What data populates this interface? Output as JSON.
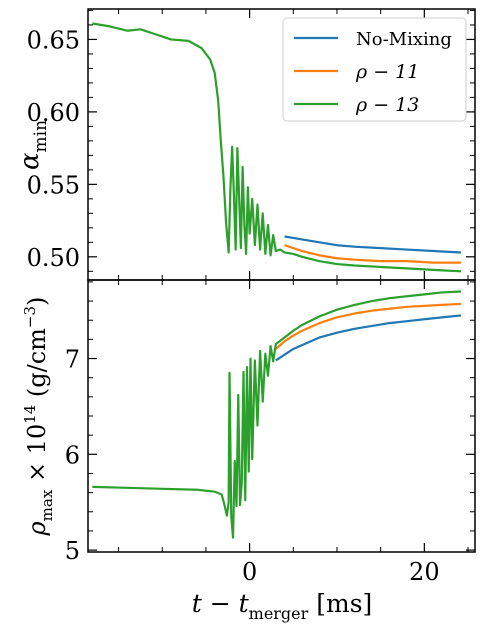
{
  "chart_data": [
    {
      "type": "line",
      "ylabel": "α_min",
      "xlim": [
        -18.5,
        25.8
      ],
      "ylim": [
        0.484,
        0.671
      ],
      "yticks": [
        0.5,
        0.55,
        0.6,
        0.65
      ],
      "ytick_labels": [
        "0.50",
        "0.55",
        "0.60",
        "0.65"
      ],
      "legend": {
        "placement": "top-right"
      },
      "series": [
        {
          "name": "No-Mixing",
          "color": "#1f77b4",
          "x": [
            4,
            5,
            6,
            8,
            10,
            12,
            15,
            18,
            21,
            24.2
          ],
          "y": [
            0.514,
            0.513,
            0.512,
            0.51,
            0.508,
            0.507,
            0.506,
            0.505,
            0.504,
            0.503
          ]
        },
        {
          "name": "ρ − 11",
          "color": "#ff7f0e",
          "x": [
            4,
            5,
            6,
            8,
            10,
            12,
            15,
            18,
            21,
            24.2
          ],
          "y": [
            0.508,
            0.506,
            0.504,
            0.501,
            0.499,
            0.498,
            0.497,
            0.497,
            0.496,
            0.496
          ]
        },
        {
          "name": "ρ − 13",
          "color": "#2ca02c",
          "x": [
            -18,
            -16,
            -14,
            -12.5,
            -11,
            -9,
            -7,
            -5.5,
            -4.5,
            -4,
            -3.6,
            -3.3,
            -3.0,
            -2.7,
            -2.4,
            -2.2,
            -2.0,
            -1.8,
            -1.6,
            -1.4,
            -1.2,
            -1.0,
            -0.8,
            -0.6,
            -0.4,
            -0.2,
            0.0,
            0.3,
            0.6,
            0.9,
            1.2,
            1.5,
            1.8,
            2.1,
            2.4,
            2.7,
            3.0,
            3.5,
            4,
            5,
            6,
            8,
            10,
            12,
            15,
            18,
            21,
            24.2
          ],
          "y": [
            0.661,
            0.659,
            0.656,
            0.657,
            0.654,
            0.65,
            0.649,
            0.644,
            0.636,
            0.627,
            0.608,
            0.58,
            0.556,
            0.524,
            0.503,
            0.547,
            0.576,
            0.543,
            0.505,
            0.575,
            0.541,
            0.506,
            0.562,
            0.522,
            0.502,
            0.548,
            0.516,
            0.54,
            0.508,
            0.536,
            0.505,
            0.53,
            0.502,
            0.522,
            0.501,
            0.515,
            0.504,
            0.505,
            0.503,
            0.502,
            0.5,
            0.497,
            0.495,
            0.494,
            0.493,
            0.492,
            0.491,
            0.49
          ]
        }
      ]
    },
    {
      "type": "line",
      "xlabel": "t − t_merger [ms]",
      "ylabel": "ρ_max × 10^14 (g/cm^−3)",
      "xlim": [
        -18.5,
        25.8
      ],
      "ylim": [
        4.98,
        7.82
      ],
      "xticks": [
        0,
        20
      ],
      "xtick_labels": [
        "0",
        "20"
      ],
      "yticks": [
        5,
        6,
        7
      ],
      "ytick_labels": [
        "5",
        "6",
        "7"
      ],
      "series": [
        {
          "name": "No-Mixing",
          "color": "#1f77b4",
          "x": [
            3,
            4,
            5,
            6,
            8,
            10,
            12,
            14,
            16,
            18,
            20,
            22,
            24.2
          ],
          "y": [
            6.98,
            7.04,
            7.1,
            7.14,
            7.22,
            7.27,
            7.31,
            7.34,
            7.37,
            7.39,
            7.41,
            7.43,
            7.45
          ]
        },
        {
          "name": "ρ − 11",
          "color": "#ff7f0e",
          "x": [
            3,
            4,
            5,
            6,
            8,
            10,
            12,
            14,
            16,
            18,
            20,
            22,
            24.2
          ],
          "y": [
            7.1,
            7.18,
            7.24,
            7.29,
            7.37,
            7.43,
            7.47,
            7.5,
            7.52,
            7.54,
            7.55,
            7.56,
            7.57
          ]
        },
        {
          "name": "ρ − 13",
          "color": "#2ca02c",
          "x": [
            -18,
            -14,
            -10,
            -6,
            -4,
            -3.2,
            -2.9,
            -2.6,
            -2.4,
            -2.3,
            -2.1,
            -1.9,
            -1.7,
            -1.5,
            -1.3,
            -1.1,
            -0.9,
            -0.7,
            -0.5,
            -0.3,
            -0.1,
            0.1,
            0.3,
            0.6,
            0.9,
            1.2,
            1.5,
            1.8,
            2.1,
            2.4,
            2.7,
            3.0,
            4,
            5,
            6,
            8,
            10,
            12,
            14,
            16,
            18,
            20,
            22,
            24.2
          ],
          "y": [
            5.66,
            5.65,
            5.64,
            5.63,
            5.61,
            5.58,
            5.48,
            5.36,
            5.5,
            6.85,
            5.35,
            5.13,
            5.93,
            5.46,
            6.62,
            5.47,
            5.7,
            6.86,
            5.52,
            6.91,
            5.82,
            7.0,
            5.95,
            6.98,
            6.3,
            7.08,
            6.55,
            7.05,
            6.82,
            7.13,
            6.97,
            7.15,
            7.22,
            7.29,
            7.35,
            7.44,
            7.51,
            7.56,
            7.6,
            7.63,
            7.65,
            7.67,
            7.69,
            7.7
          ]
        }
      ]
    }
  ]
}
